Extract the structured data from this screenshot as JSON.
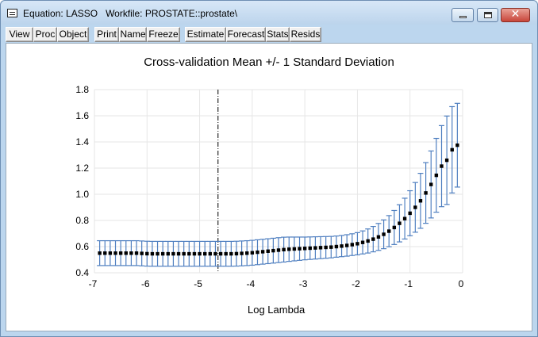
{
  "window": {
    "title": "Equation: LASSO   Workfile: PROSTATE::prostate\\",
    "minimize_icon": "minimize-icon",
    "maximize_icon": "maximize-icon",
    "close_icon": "close-icon",
    "close_glyph": "✕"
  },
  "toolbar": {
    "buttons": [
      "View",
      "Proc",
      "Object",
      "Print",
      "Name",
      "Freeze",
      "Estimate",
      "Forecast",
      "Stats",
      "Resids"
    ]
  },
  "chart_data": {
    "type": "scatter",
    "title": "Cross-validation Mean +/- 1 Standard Deviation",
    "xlabel": "Log Lambda",
    "ylabel": "",
    "xlim": [
      -7,
      0
    ],
    "ylim": [
      0.4,
      1.8
    ],
    "xticks": [
      "-7",
      "-6",
      "-5",
      "-4",
      "-3",
      "-2",
      "-1",
      "0"
    ],
    "yticks": [
      "0.4",
      "0.6",
      "0.8",
      "1.0",
      "1.2",
      "1.4",
      "1.6",
      "1.8"
    ],
    "grid": true,
    "vertical_reference_line_x": -4.65,
    "error_bars": "mean +/- 1 standard deviation",
    "colors": {
      "errorbar": "#4f7fc0",
      "point": "#000000",
      "grid": "#e6e6e6",
      "refline": "#000000"
    },
    "x": [
      -6.9,
      -6.8,
      -6.7,
      -6.6,
      -6.5,
      -6.4,
      -6.3,
      -6.2,
      -6.1,
      -6.0,
      -5.9,
      -5.8,
      -5.7,
      -5.6,
      -5.5,
      -5.4,
      -5.3,
      -5.2,
      -5.1,
      -5.0,
      -4.9,
      -4.8,
      -4.7,
      -4.6,
      -4.5,
      -4.4,
      -4.3,
      -4.2,
      -4.1,
      -4.0,
      -3.9,
      -3.8,
      -3.7,
      -3.6,
      -3.5,
      -3.4,
      -3.3,
      -3.2,
      -3.1,
      -3.0,
      -2.9,
      -2.8,
      -2.7,
      -2.6,
      -2.5,
      -2.4,
      -2.3,
      -2.2,
      -2.1,
      -2.0,
      -1.9,
      -1.8,
      -1.7,
      -1.6,
      -1.5,
      -1.4,
      -1.3,
      -1.2,
      -1.1,
      -1.0,
      -0.9,
      -0.8,
      -0.7,
      -0.6,
      -0.5,
      -0.4,
      -0.3,
      -0.2,
      -0.1
    ],
    "mean": [
      0.55,
      0.55,
      0.55,
      0.55,
      0.55,
      0.55,
      0.55,
      0.55,
      0.548,
      0.546,
      0.545,
      0.545,
      0.545,
      0.545,
      0.545,
      0.545,
      0.545,
      0.545,
      0.545,
      0.545,
      0.545,
      0.545,
      0.545,
      0.545,
      0.545,
      0.545,
      0.546,
      0.548,
      0.55,
      0.553,
      0.557,
      0.561,
      0.565,
      0.569,
      0.573,
      0.577,
      0.58,
      0.582,
      0.584,
      0.586,
      0.588,
      0.59,
      0.592,
      0.594,
      0.596,
      0.6,
      0.604,
      0.609,
      0.615,
      0.622,
      0.632,
      0.643,
      0.657,
      0.674,
      0.694,
      0.718,
      0.746,
      0.778,
      0.814,
      0.855,
      0.9,
      0.95,
      1.01,
      1.075,
      1.145,
      1.215,
      1.26,
      1.34,
      1.375
    ],
    "sd": [
      0.095,
      0.095,
      0.095,
      0.095,
      0.095,
      0.095,
      0.095,
      0.095,
      0.095,
      0.095,
      0.095,
      0.095,
      0.095,
      0.095,
      0.095,
      0.095,
      0.095,
      0.095,
      0.095,
      0.095,
      0.095,
      0.095,
      0.095,
      0.095,
      0.095,
      0.095,
      0.095,
      0.095,
      0.095,
      0.095,
      0.095,
      0.095,
      0.095,
      0.095,
      0.095,
      0.095,
      0.093,
      0.091,
      0.089,
      0.087,
      0.086,
      0.085,
      0.084,
      0.083,
      0.082,
      0.081,
      0.081,
      0.082,
      0.083,
      0.085,
      0.088,
      0.092,
      0.097,
      0.103,
      0.11,
      0.119,
      0.13,
      0.142,
      0.156,
      0.172,
      0.19,
      0.21,
      0.232,
      0.256,
      0.282,
      0.31,
      0.338,
      0.33,
      0.32
    ]
  }
}
